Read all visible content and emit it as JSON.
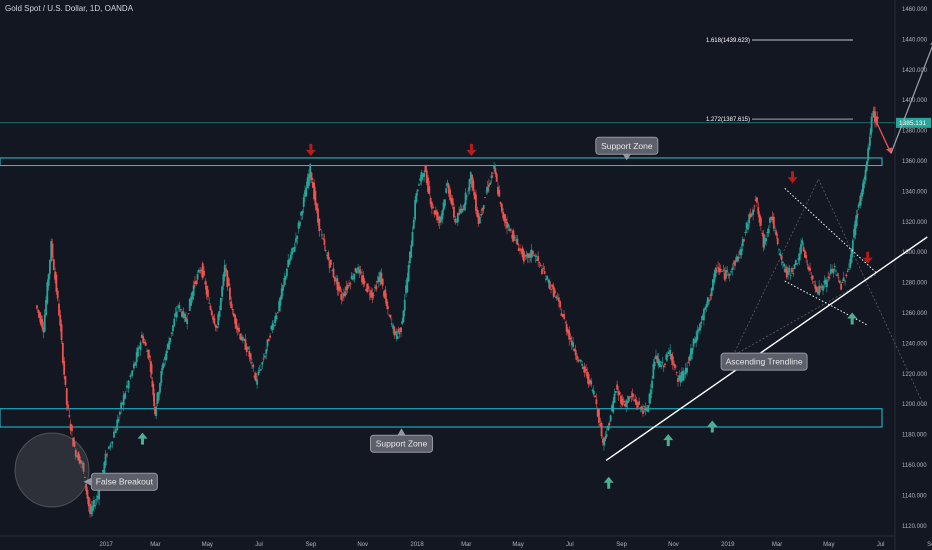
{
  "chart_data": {
    "type": "candlestick",
    "title": "Gold Spot / U.S. Dollar, 1D, OANDA",
    "ylim": [
      1110,
      1465
    ],
    "y_ticks": [
      1120,
      1140,
      1160,
      1180,
      1200,
      1220,
      1240,
      1260,
      1280,
      1300,
      1320,
      1340,
      1360,
      1380,
      1400,
      1420,
      1440,
      1460
    ],
    "y_tick_labels": [
      "1120.000",
      "1140.000",
      "1160.000",
      "1180.000",
      "1200.000",
      "1220.000",
      "1240.000",
      "1260.000",
      "1280.000",
      "1300.000",
      "1320.000",
      "1340.000",
      "1360.000",
      "1380.000",
      "1400.000",
      "1420.000",
      "1440.000",
      "1460.000"
    ],
    "x_ticks": [
      {
        "label": "2017",
        "t": 3.6
      },
      {
        "label": "Mar",
        "t": 5.5
      },
      {
        "label": "May",
        "t": 7.5
      },
      {
        "label": "Jul",
        "t": 9.5
      },
      {
        "label": "Sep",
        "t": 11.5
      },
      {
        "label": "Nov",
        "t": 13.5
      },
      {
        "label": "2018",
        "t": 15.6
      },
      {
        "label": "Mar",
        "t": 17.5
      },
      {
        "label": "May",
        "t": 19.5
      },
      {
        "label": "Jul",
        "t": 21.5
      },
      {
        "label": "Sep",
        "t": 23.5
      },
      {
        "label": "Nov",
        "t": 25.5
      },
      {
        "label": "2019",
        "t": 27.6
      },
      {
        "label": "Mar",
        "t": 29.5
      },
      {
        "label": "May",
        "t": 31.5
      },
      {
        "label": "Jul",
        "t": 33.5
      },
      {
        "label": "Sep",
        "t": 35.5
      }
    ],
    "price_path": [
      [
        0.9,
        1265
      ],
      [
        1.2,
        1250
      ],
      [
        1.5,
        1305
      ],
      [
        1.8,
        1260
      ],
      [
        2.1,
        1200
      ],
      [
        2.4,
        1170
      ],
      [
        2.7,
        1160
      ],
      [
        3.0,
        1128
      ],
      [
        3.3,
        1140
      ],
      [
        3.6,
        1165
      ],
      [
        4.0,
        1185
      ],
      [
        4.3,
        1205
      ],
      [
        4.7,
        1225
      ],
      [
        5.0,
        1245
      ],
      [
        5.3,
        1230
      ],
      [
        5.5,
        1195
      ],
      [
        5.8,
        1225
      ],
      [
        6.1,
        1245
      ],
      [
        6.4,
        1265
      ],
      [
        6.7,
        1255
      ],
      [
        7.0,
        1278
      ],
      [
        7.3,
        1290
      ],
      [
        7.6,
        1265
      ],
      [
        7.9,
        1250
      ],
      [
        8.2,
        1290
      ],
      [
        8.5,
        1260
      ],
      [
        8.8,
        1245
      ],
      [
        9.1,
        1235
      ],
      [
        9.4,
        1215
      ],
      [
        9.7,
        1230
      ],
      [
        10.0,
        1250
      ],
      [
        10.3,
        1265
      ],
      [
        10.6,
        1290
      ],
      [
        10.9,
        1305
      ],
      [
        11.2,
        1330
      ],
      [
        11.5,
        1355
      ],
      [
        11.8,
        1320
      ],
      [
        12.1,
        1300
      ],
      [
        12.4,
        1285
      ],
      [
        12.7,
        1270
      ],
      [
        13.0,
        1280
      ],
      [
        13.3,
        1290
      ],
      [
        13.6,
        1278
      ],
      [
        13.9,
        1272
      ],
      [
        14.2,
        1285
      ],
      [
        14.5,
        1260
      ],
      [
        14.8,
        1245
      ],
      [
        15.0,
        1250
      ],
      [
        15.3,
        1290
      ],
      [
        15.6,
        1340
      ],
      [
        15.9,
        1355
      ],
      [
        16.2,
        1330
      ],
      [
        16.5,
        1320
      ],
      [
        16.8,
        1345
      ],
      [
        17.1,
        1320
      ],
      [
        17.4,
        1330
      ],
      [
        17.7,
        1350
      ],
      [
        18.0,
        1320
      ],
      [
        18.3,
        1340
      ],
      [
        18.6,
        1355
      ],
      [
        18.9,
        1325
      ],
      [
        19.2,
        1315
      ],
      [
        19.5,
        1305
      ],
      [
        19.8,
        1295
      ],
      [
        20.1,
        1300
      ],
      [
        20.4,
        1290
      ],
      [
        20.7,
        1280
      ],
      [
        21.0,
        1270
      ],
      [
        21.3,
        1255
      ],
      [
        21.6,
        1240
      ],
      [
        21.9,
        1228
      ],
      [
        22.2,
        1218
      ],
      [
        22.5,
        1205
      ],
      [
        22.8,
        1175
      ],
      [
        23.0,
        1185
      ],
      [
        23.3,
        1210
      ],
      [
        23.6,
        1200
      ],
      [
        23.9,
        1205
      ],
      [
        24.2,
        1198
      ],
      [
        24.5,
        1195
      ],
      [
        24.8,
        1230
      ],
      [
        25.1,
        1225
      ],
      [
        25.4,
        1235
      ],
      [
        25.7,
        1215
      ],
      [
        26.0,
        1222
      ],
      [
        26.3,
        1240
      ],
      [
        26.6,
        1255
      ],
      [
        26.9,
        1270
      ],
      [
        27.2,
        1290
      ],
      [
        27.5,
        1285
      ],
      [
        27.8,
        1290
      ],
      [
        28.1,
        1300
      ],
      [
        28.4,
        1320
      ],
      [
        28.7,
        1335
      ],
      [
        29.0,
        1305
      ],
      [
        29.3,
        1325
      ],
      [
        29.6,
        1300
      ],
      [
        29.9,
        1285
      ],
      [
        30.2,
        1290
      ],
      [
        30.5,
        1305
      ],
      [
        30.8,
        1285
      ],
      [
        31.1,
        1275
      ],
      [
        31.4,
        1280
      ],
      [
        31.7,
        1290
      ],
      [
        32.0,
        1278
      ],
      [
        32.3,
        1290
      ],
      [
        32.6,
        1325
      ],
      [
        32.8,
        1340
      ],
      [
        33.0,
        1360
      ],
      [
        33.2,
        1392
      ],
      [
        33.4,
        1385
      ]
    ],
    "zones": [
      {
        "label": "Support Zone",
        "low": 1357,
        "high": 1362
      },
      {
        "label": "Support Zone",
        "low": 1185,
        "high": 1197
      }
    ],
    "fib_levels": [
      {
        "label": "1.618(1439.623)",
        "value": 1439.6
      },
      {
        "label": "1.272(1387.615)",
        "value": 1387.6
      }
    ],
    "last_price": {
      "label": "1385.131",
      "value": 1385.1
    },
    "annotations": [
      {
        "text": "Support Zone",
        "t": 23.7,
        "y": 1370
      },
      {
        "text": "Support Zone",
        "t": 15.0,
        "y": 1174
      },
      {
        "text": "Ascending Trendline",
        "t": 29.0,
        "y": 1228
      },
      {
        "text": "False Breakout",
        "t": 4.3,
        "y": 1149
      }
    ],
    "trendline": {
      "from": [
        22.9,
        1163
      ],
      "to": [
        35.3,
        1310
      ]
    },
    "arrows_down": [
      [
        11.5,
        1366
      ],
      [
        17.7,
        1366
      ],
      [
        30.1,
        1348
      ],
      [
        33.0,
        1295
      ]
    ],
    "arrows_up": [
      [
        5.0,
        1178
      ],
      [
        23.0,
        1149
      ],
      [
        25.3,
        1177
      ],
      [
        27.0,
        1186
      ],
      [
        32.4,
        1257
      ]
    ],
    "channel_lines": [
      {
        "from": [
          29.8,
          1342
        ],
        "to": [
          33.3,
          1287
        ]
      },
      {
        "from": [
          29.8,
          1281
        ],
        "to": [
          33.0,
          1252
        ]
      }
    ],
    "faint_lines": [
      {
        "from": [
          27.6,
          1225
        ],
        "to": [
          31.1,
          1348
        ]
      },
      {
        "from": [
          31.1,
          1348
        ],
        "to": [
          35.2,
          1198
        ]
      },
      {
        "from": [
          27.6,
          1230
        ],
        "to": [
          33.3,
          1285
        ]
      }
    ],
    "projection": {
      "from": [
        33.3,
        1387
      ],
      "to": [
        33.9,
        1365
      ],
      "to2": [
        35.6,
        1440
      ]
    }
  }
}
